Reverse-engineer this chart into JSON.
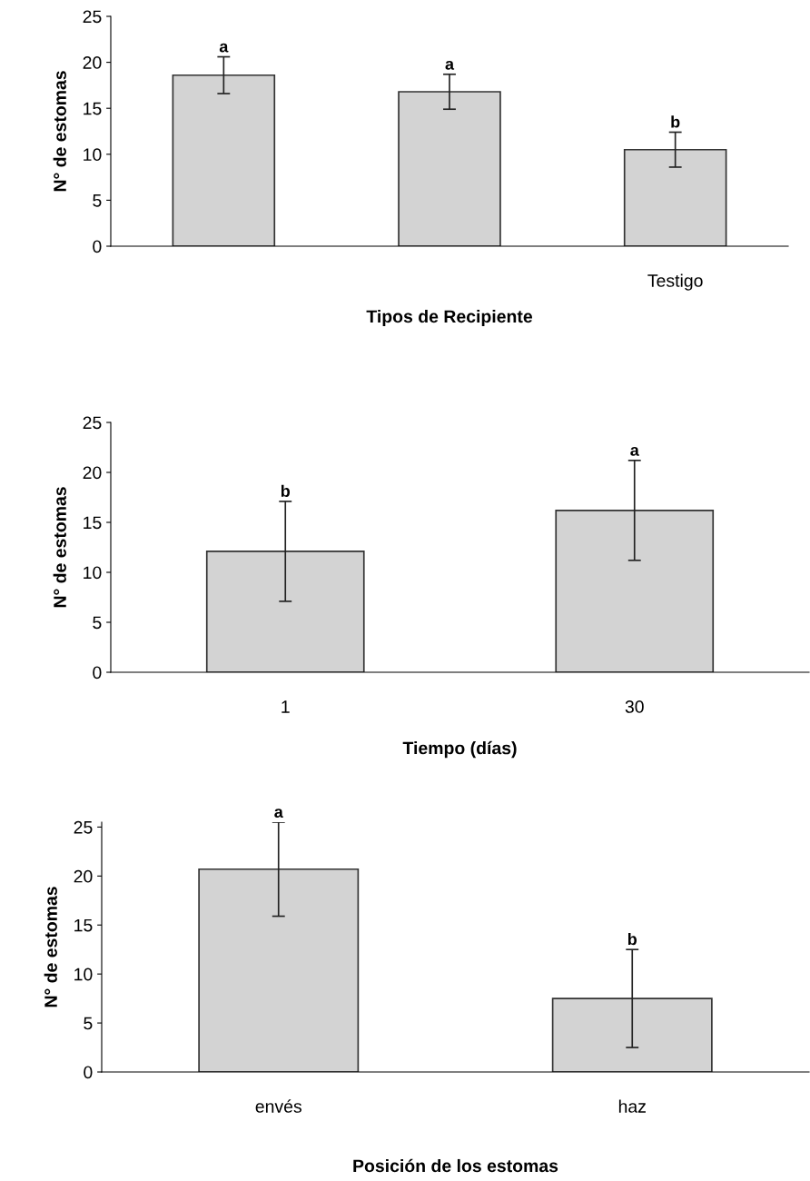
{
  "chart_data": [
    {
      "type": "bar",
      "xlabel": "Tipos de Recipiente",
      "ylabel": "N° de estomas",
      "categories": [
        null,
        null,
        "Testigo"
      ],
      "values": [
        18.6,
        16.8,
        10.5
      ],
      "errors": [
        2.0,
        1.9,
        1.9
      ],
      "value_labels": [
        "a",
        "a",
        "b"
      ],
      "color": "#d3d3d3",
      "ylim": [
        0,
        25
      ],
      "yticks": [
        0,
        5,
        10,
        15,
        20,
        25
      ],
      "grid": false
    },
    {
      "type": "bar",
      "xlabel": "Tiempo (días)",
      "ylabel": "N° de estomas",
      "categories": [
        "1",
        "30"
      ],
      "values": [
        12.1,
        16.2
      ],
      "errors": [
        5.0,
        5.0
      ],
      "annotations": [
        {
          "text": "b",
          "x": "1",
          "y": 17.1
        },
        {
          "text": "a",
          "x": "30",
          "y": 21.2
        }
      ],
      "color": "#d3d3d3",
      "ylim": [
        0,
        25
      ],
      "yticks": [
        0,
        5,
        10,
        15,
        20,
        25
      ],
      "grid": false
    },
    {
      "type": "bar",
      "xlabel": "Posición de los estomas",
      "ylabel": "N° de estomas",
      "categories": [
        "envés",
        "haz"
      ],
      "values": [
        20.7,
        7.5
      ],
      "errors": [
        4.8,
        5.0
      ],
      "annotations": [
        {
          "text": "a",
          "x": "envés",
          "y": 25.5
        },
        {
          "text": "b",
          "x": "haz",
          "y": 12.5
        }
      ],
      "color": "#d3d3d3",
      "ylim": [
        0,
        25.5
      ],
      "yticks": [
        0,
        5,
        10,
        15,
        20,
        25
      ],
      "grid": false
    }
  ]
}
